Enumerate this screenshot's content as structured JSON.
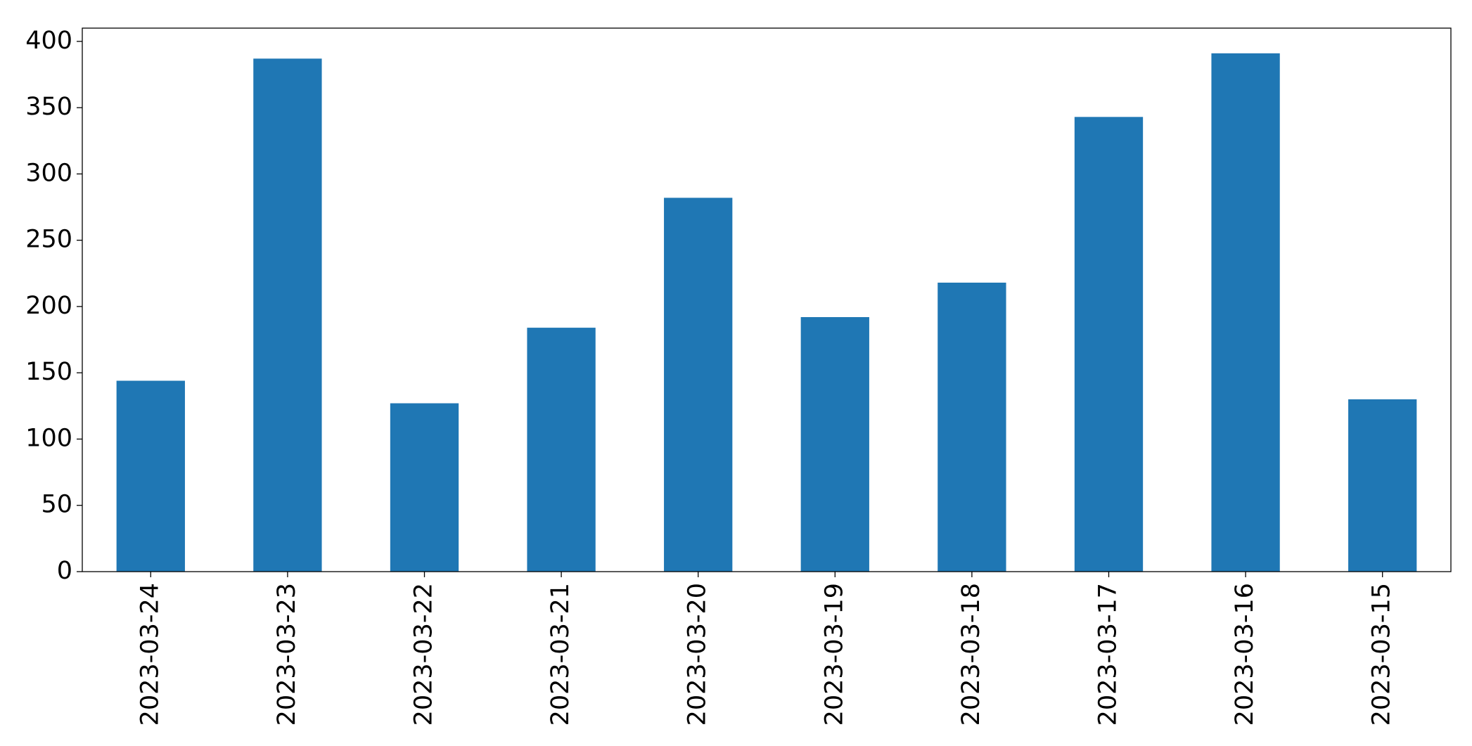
{
  "chart_data": {
    "type": "bar",
    "categories": [
      "2023-03-24",
      "2023-03-23",
      "2023-03-22",
      "2023-03-21",
      "2023-03-20",
      "2023-03-19",
      "2023-03-18",
      "2023-03-17",
      "2023-03-16",
      "2023-03-15"
    ],
    "values": [
      144,
      387,
      127,
      184,
      282,
      192,
      218,
      343,
      391,
      130
    ],
    "color": "#1f77b4",
    "ylim": [
      0,
      410
    ],
    "yticks": [
      0,
      50,
      100,
      150,
      200,
      250,
      300,
      350,
      400
    ],
    "grid": false
  }
}
